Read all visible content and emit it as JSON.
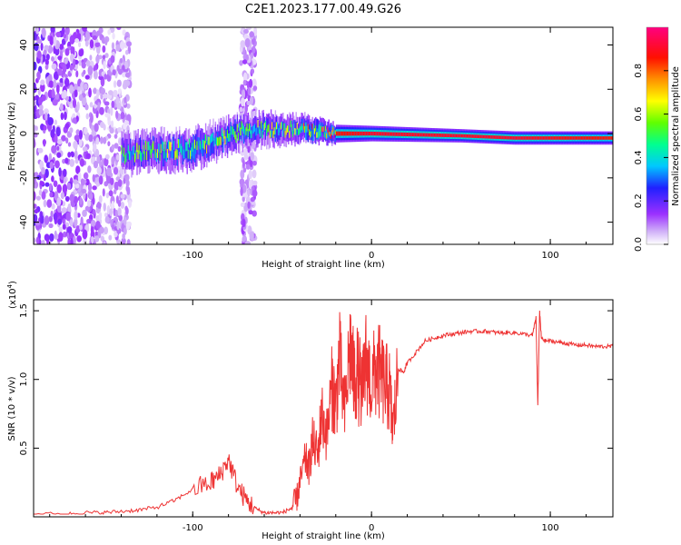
{
  "figure_title": "C2E1.2023.177.00.49.G26",
  "chart_data": [
    {
      "type": "heatmap",
      "title": "",
      "xlabel": "Height of straight line (km)",
      "ylabel": "Frequency (Hz)",
      "xlim": [
        -189,
        135
      ],
      "ylim": [
        -50,
        48
      ],
      "x_ticks": [
        -100,
        0,
        100
      ],
      "y_ticks": [
        -40,
        -20,
        0,
        20,
        40
      ],
      "colorbar": {
        "label": "Normalized spectral amplitude",
        "range": [
          0,
          1
        ],
        "ticks": [
          0.0,
          0.2,
          0.4,
          0.6,
          0.8
        ],
        "colors": [
          "#ffffff",
          "#d0b0f8",
          "#9b30ff",
          "#2020ff",
          "#00c8ff",
          "#00ff80",
          "#60ff00",
          "#ffff00",
          "#ff8000",
          "#ff0000",
          "#ff0080"
        ]
      },
      "features": [
        {
          "label": "noise scatter",
          "x_range": [
            -189,
            -135
          ],
          "freq_range": [
            -50,
            48
          ],
          "level": 0.12
        },
        {
          "label": "noise column",
          "x_range": [
            -73,
            -65
          ],
          "freq_range": [
            -50,
            48
          ],
          "level": 0.08
        },
        {
          "label": "signal track",
          "x": [
            -140,
            -100,
            -70,
            -40,
            -20,
            0,
            50,
            80,
            135
          ],
          "center_freq": [
            -9,
            -7,
            2,
            2,
            0,
            0,
            -1,
            -2,
            -2
          ],
          "half_width": [
            8,
            8,
            7,
            6,
            4,
            3.5,
            3,
            3,
            3
          ],
          "peak_level": [
            0.45,
            0.5,
            0.5,
            0.55,
            0.85,
            0.9,
            0.9,
            0.9,
            0.85
          ]
        }
      ]
    },
    {
      "type": "line",
      "title": "",
      "xlabel": "Height of straight line (km)",
      "ylabel": "SNR (10 * v/v)",
      "y_scale_label": "(x10",
      "y_scale_exp": "4",
      "xlim": [
        -189,
        135
      ],
      "ylim": [
        0,
        1.58
      ],
      "x_ticks": [
        -100,
        0,
        100
      ],
      "y_ticks": [
        0.5,
        1.0,
        1.5
      ],
      "color": "#ee3333",
      "series": [
        {
          "x": [
            -189,
            -170,
            -160,
            -150,
            -140,
            -130,
            -120,
            -110,
            -100,
            -90,
            -85,
            -80,
            -75,
            -70,
            -65,
            -60,
            -55,
            -50,
            -45,
            -42,
            -40,
            -37,
            -35,
            -33,
            -30,
            -28,
            -25,
            -22,
            -20,
            -18,
            -15,
            -12,
            -10,
            -8,
            -5,
            -3,
            0,
            3,
            5,
            8,
            10,
            12,
            15,
            18,
            20,
            25,
            30,
            35,
            40,
            45,
            50,
            55,
            60,
            65,
            70,
            75,
            80,
            85,
            90,
            92,
            93,
            94,
            95,
            97,
            100,
            105,
            110,
            115,
            120,
            125,
            130,
            135
          ],
          "values": [
            0.02,
            0.02,
            0.03,
            0.03,
            0.04,
            0.05,
            0.07,
            0.12,
            0.2,
            0.25,
            0.3,
            0.42,
            0.22,
            0.12,
            0.06,
            0.03,
            0.03,
            0.03,
            0.06,
            0.12,
            0.25,
            0.42,
            0.35,
            0.55,
            0.45,
            0.75,
            0.6,
            0.95,
            0.8,
            1.15,
            0.75,
            1.25,
            1.0,
            1.05,
            0.9,
            1.15,
            0.95,
            1.1,
            1.02,
            0.95,
            0.92,
            0.62,
            1.08,
            1.05,
            1.12,
            1.2,
            1.28,
            1.3,
            1.32,
            1.33,
            1.34,
            1.35,
            1.35,
            1.35,
            1.34,
            1.34,
            1.34,
            1.33,
            1.32,
            1.45,
            0.8,
            1.5,
            1.3,
            1.28,
            1.28,
            1.27,
            1.26,
            1.25,
            1.25,
            1.24,
            1.24,
            1.24
          ]
        }
      ]
    }
  ]
}
